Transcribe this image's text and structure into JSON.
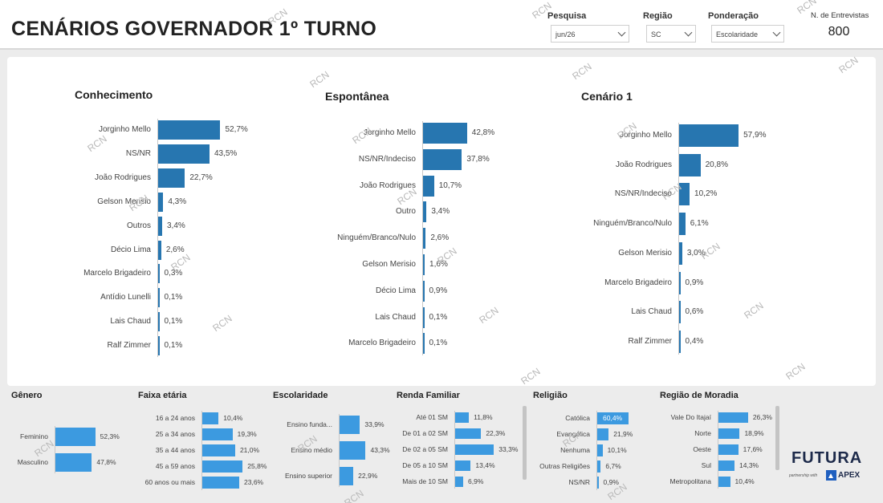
{
  "header": {
    "title": "CENÁRIOS GOVERNADOR 1º TURNO",
    "filters": [
      {
        "label": "Pesquisa",
        "value": "jun/26"
      },
      {
        "label": "Região",
        "value": "SC"
      },
      {
        "label": "Ponderação",
        "value": "Escolaridade"
      }
    ],
    "entrevistas_label": "N. de Entrevistas",
    "entrevistas_value": "800"
  },
  "watermark_text": "RCN",
  "colors": {
    "main_bar": "#2776b0",
    "sub_bar": "#3c9ae0"
  },
  "chart_data": [
    {
      "type": "bar",
      "orientation": "horizontal",
      "title": "Conhecimento",
      "categories": [
        "Jorginho Mello",
        "NS/NR",
        "João Rodrigues",
        "Gelson Merisio",
        "Outros",
        "Décio Lima",
        "Marcelo Brigadeiro",
        "Antídio Lunelli",
        "Lais Chaud",
        "Ralf Zimmer"
      ],
      "values": [
        52.7,
        43.5,
        22.7,
        4.3,
        3.4,
        2.6,
        0.3,
        0.1,
        0.1,
        0.1
      ],
      "labels": [
        "52,7%",
        "43,5%",
        "22,7%",
        "4,3%",
        "3,4%",
        "2,6%",
        "0,3%",
        "0,1%",
        "0,1%",
        "0,1%"
      ]
    },
    {
      "type": "bar",
      "orientation": "horizontal",
      "title": "Espontânea",
      "categories": [
        "Jorginho Mello",
        "NS/NR/Indeciso",
        "João Rodrigues",
        "Outro",
        "Ninguém/Branco/Nulo",
        "Gelson Merisio",
        "Décio Lima",
        "Lais Chaud",
        "Marcelo Brigadeiro"
      ],
      "values": [
        42.8,
        37.8,
        10.7,
        3.4,
        2.6,
        1.6,
        0.9,
        0.1,
        0.1
      ],
      "labels": [
        "42,8%",
        "37,8%",
        "10,7%",
        "3,4%",
        "2,6%",
        "1,6%",
        "0,9%",
        "0,1%",
        "0,1%"
      ]
    },
    {
      "type": "bar",
      "orientation": "horizontal",
      "title": "Cenário 1",
      "categories": [
        "Jorginho Mello",
        "João Rodrigues",
        "NS/NR/Indeciso",
        "Ninguém/Branco/Nulo",
        "Gelson Merisio",
        "Marcelo Brigadeiro",
        "Lais Chaud",
        "Ralf Zimmer"
      ],
      "values": [
        57.9,
        20.8,
        10.2,
        6.1,
        3.0,
        0.9,
        0.6,
        0.4
      ],
      "labels": [
        "57,9%",
        "20,8%",
        "10,2%",
        "6,1%",
        "3,0%",
        "0,9%",
        "0,6%",
        "0,4%"
      ]
    },
    {
      "type": "bar",
      "orientation": "horizontal",
      "title": "Gênero",
      "categories": [
        "Feminino",
        "Masculino"
      ],
      "values": [
        52.3,
        47.8
      ],
      "labels": [
        "52,3%",
        "47,8%"
      ]
    },
    {
      "type": "bar",
      "orientation": "horizontal",
      "title": "Faixa etária",
      "categories": [
        "16 a 24 anos",
        "25 a 34 anos",
        "35 a 44 anos",
        "45 a 59 anos",
        "60 anos ou mais"
      ],
      "values": [
        10.4,
        19.3,
        21.0,
        25.8,
        23.6
      ],
      "labels": [
        "10,4%",
        "19,3%",
        "21,0%",
        "25,8%",
        "23,6%"
      ]
    },
    {
      "type": "bar",
      "orientation": "horizontal",
      "title": "Escolaridade",
      "categories": [
        "Ensino funda...",
        "Ensino médio",
        "Ensino superior"
      ],
      "values": [
        33.9,
        43.3,
        22.9
      ],
      "labels": [
        "33,9%",
        "43,3%",
        "22,9%"
      ]
    },
    {
      "type": "bar",
      "orientation": "horizontal",
      "title": "Renda Familiar",
      "categories": [
        "Até 01 SM",
        "De 01 a 02 SM",
        "De 02 a 05 SM",
        "De 05 a 10 SM",
        "Mais de 10 SM"
      ],
      "values": [
        11.8,
        22.3,
        33.3,
        13.4,
        6.9
      ],
      "labels": [
        "11,8%",
        "22,3%",
        "33,3%",
        "13,4%",
        "6,9%"
      ]
    },
    {
      "type": "bar",
      "orientation": "horizontal",
      "title": "Religião",
      "categories": [
        "Católica",
        "Evangélica",
        "Nenhuma",
        "Outras Religiões",
        "NS/NR"
      ],
      "values": [
        60.4,
        21.9,
        10.1,
        6.7,
        0.9
      ],
      "labels": [
        "60,4%",
        "21,9%",
        "10,1%",
        "6,7%",
        "0,9%"
      ]
    },
    {
      "type": "bar",
      "orientation": "horizontal",
      "title": "Região de Moradia",
      "categories": [
        "Vale Do Itajaí",
        "Norte",
        "Oeste",
        "Sul",
        "Metropolitana"
      ],
      "values": [
        26.3,
        18.9,
        17.6,
        14.3,
        10.4
      ],
      "labels": [
        "26,3%",
        "18,9%",
        "17,6%",
        "14,3%",
        "10,4%"
      ]
    }
  ],
  "branding": {
    "futura": "FUTURA",
    "partner_text": "partnership with",
    "apex": "APEX"
  }
}
